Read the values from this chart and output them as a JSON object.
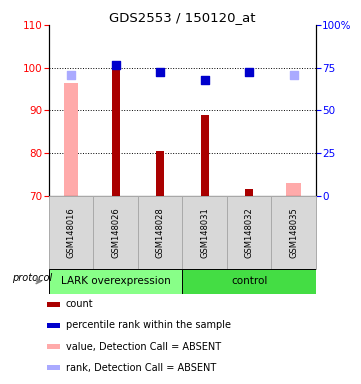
{
  "title": "GDS2553 / 150120_at",
  "samples": [
    "GSM148016",
    "GSM148026",
    "GSM148028",
    "GSM148031",
    "GSM148032",
    "GSM148035"
  ],
  "ylim_left": [
    70,
    110
  ],
  "ylim_right": [
    0,
    100
  ],
  "yticks_left": [
    70,
    80,
    90,
    100,
    110
  ],
  "yticks_right": [
    0,
    25,
    50,
    75,
    100
  ],
  "ytick_labels_right": [
    "0",
    "25",
    "50",
    "75",
    "100%"
  ],
  "bar_values": [
    null,
    101.5,
    80.5,
    89.0,
    71.5,
    null
  ],
  "bar_color": "#aa0000",
  "absent_bar_values": [
    96.5,
    null,
    null,
    null,
    null,
    73.0
  ],
  "absent_bar_color": "#ffaaaa",
  "rank_dots_right": [
    null,
    76.5,
    72.5,
    68.0,
    72.5,
    null
  ],
  "rank_dots_color": "#0000cc",
  "absent_rank_right": [
    71.0,
    null,
    null,
    null,
    null,
    70.5
  ],
  "absent_rank_color": "#aaaaff",
  "protocol_groups": [
    {
      "label": "LARK overexpression",
      "indices": [
        0,
        1,
        2
      ],
      "color": "#88ff88"
    },
    {
      "label": "control",
      "indices": [
        3,
        4,
        5
      ],
      "color": "#44dd44"
    }
  ],
  "protocol_label": "protocol",
  "legend_items": [
    {
      "label": "count",
      "color": "#aa0000"
    },
    {
      "label": "percentile rank within the sample",
      "color": "#0000cc"
    },
    {
      "label": "value, Detection Call = ABSENT",
      "color": "#ffaaaa"
    },
    {
      "label": "rank, Detection Call = ABSENT",
      "color": "#aaaaff"
    }
  ],
  "background_color": "#ffffff",
  "sample_bg_color": "#d8d8d8",
  "sample_border_color": "#aaaaaa",
  "dot_size": 28
}
